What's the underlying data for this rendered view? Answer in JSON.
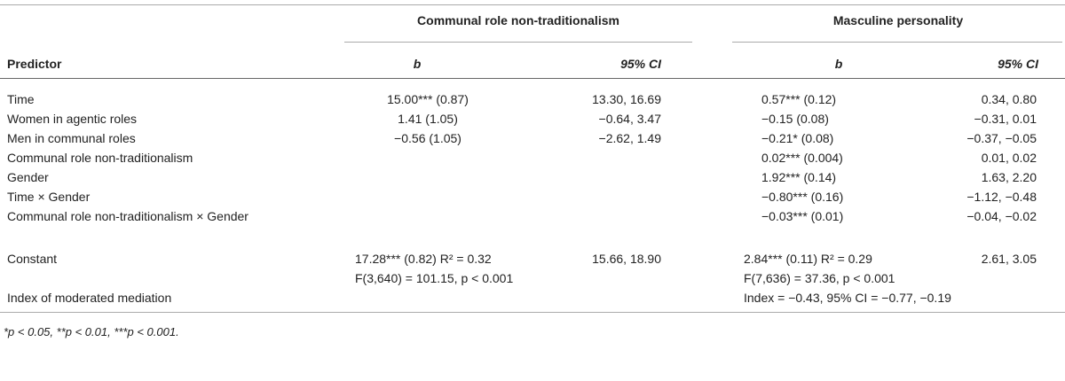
{
  "table": {
    "groups": [
      "Communal role non-traditionalism",
      "Masculine personality"
    ],
    "header": [
      "Predictor",
      "b",
      "95% CI",
      "b",
      "95% CI"
    ],
    "rows": [
      [
        "Time",
        "15.00*** (0.87)",
        "13.30, 16.69",
        "0.57*** (0.12)",
        "0.34, 0.80"
      ],
      [
        "Women in agentic roles",
        "1.41 (1.05)",
        "−0.64, 3.47",
        "−0.15 (0.08)",
        "−0.31, 0.01"
      ],
      [
        "Men in communal roles",
        "−0.56 (1.05)",
        "−2.62, 1.49",
        "−0.21* (0.08)",
        "−0.37, −0.05"
      ],
      [
        "Communal role non-traditionalism",
        null,
        null,
        "0.02*** (0.004)",
        "0.01, 0.02"
      ],
      [
        "Gender",
        null,
        null,
        "1.92*** (0.14)",
        "1.63, 2.20"
      ],
      [
        "Time × Gender",
        null,
        null,
        "−0.80*** (0.16)",
        "−1.12, −0.48"
      ],
      [
        "Communal role non-traditionalism × Gender",
        null,
        null,
        "−0.03*** (0.01)",
        "−0.04, −0.02"
      ],
      [
        "Constant",
        "17.28*** (0.82) R² = 0.32",
        "15.66, 18.90",
        "2.84*** (0.11) R² = 0.29",
        "2.61, 3.05"
      ],
      [
        null,
        "F(3,640) = 101.15, p < 0.001",
        null,
        "F(7,636) = 37.36, p < 0.001",
        null
      ],
      [
        "Index of moderated mediation",
        null,
        null,
        "Index = −0.43, 95% CI = −0.77, −0.19",
        null
      ]
    ],
    "footnote": "*p < 0.05, **p < 0.01, ***p < 0.001."
  }
}
